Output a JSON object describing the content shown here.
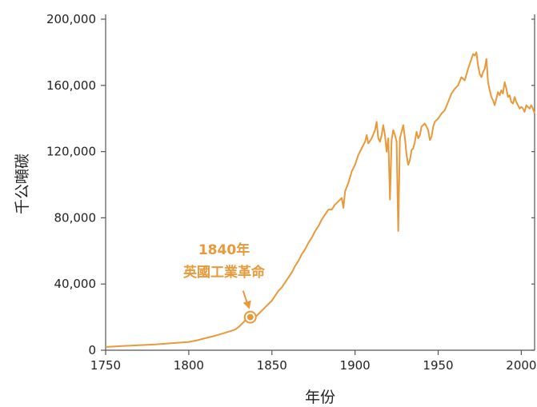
{
  "colors": {
    "line": "#E8993A",
    "axis": "#555555",
    "text": "#222222"
  },
  "chart_data": {
    "type": "line",
    "xlabel": "年份",
    "ylabel": "千公噸碳",
    "xlim": [
      1750,
      2008
    ],
    "ylim": [
      0,
      200000
    ],
    "x_ticks": [
      1750,
      1800,
      1850,
      1900,
      1950,
      2000
    ],
    "y_ticks": [
      0,
      40000,
      80000,
      120000,
      160000,
      200000
    ],
    "x_tick_labels": [
      "1750",
      "1800",
      "1850",
      "1900",
      "1950",
      "2000"
    ],
    "y_tick_labels": [
      "0",
      "40,000",
      "80,000",
      "120,000",
      "160,000",
      "200,000"
    ],
    "grid": false,
    "annotation": {
      "text_line1": "1840年",
      "text_line2": "英國工業革命",
      "point_x": 1837,
      "point_y": 20000
    },
    "series": [
      {
        "x": [
          1750,
          1760,
          1770,
          1780,
          1790,
          1800,
          1805,
          1810,
          1815,
          1820,
          1825,
          1828,
          1830,
          1832,
          1834,
          1836,
          1838,
          1840,
          1842,
          1844,
          1846,
          1848,
          1850,
          1852,
          1854,
          1856,
          1858,
          1860,
          1862,
          1864,
          1866,
          1868,
          1870,
          1872,
          1874,
          1876,
          1878,
          1880,
          1882,
          1884,
          1886,
          1888,
          1890,
          1892,
          1893,
          1894,
          1896,
          1898,
          1900,
          1902,
          1904,
          1906,
          1907,
          1908,
          1910,
          1912,
          1913,
          1914,
          1915,
          1916,
          1917,
          1918,
          1919,
          1920,
          1921,
          1922,
          1923,
          1924,
          1925,
          1926,
          1927,
          1928,
          1929,
          1930,
          1931,
          1932,
          1933,
          1934,
          1935,
          1936,
          1937,
          1938,
          1939,
          1940,
          1942,
          1944,
          1945,
          1946,
          1947,
          1948,
          1950,
          1952,
          1954,
          1956,
          1958,
          1960,
          1962,
          1964,
          1966,
          1968,
          1970,
          1971,
          1972,
          1973,
          1974,
          1975,
          1976,
          1977,
          1978,
          1979,
          1980,
          1981,
          1982,
          1983,
          1984,
          1985,
          1986,
          1987,
          1988,
          1989,
          1990,
          1991,
          1992,
          1993,
          1994,
          1995,
          1996,
          1997,
          1998,
          1999,
          2000,
          2001,
          2002,
          2003,
          2004,
          2005,
          2006,
          2007,
          2008
        ],
        "values": [
          2000,
          2500,
          3000,
          3500,
          4300,
          5000,
          6000,
          7300,
          8500,
          10000,
          11500,
          12500,
          14000,
          16000,
          18000,
          19500,
          20000,
          20000,
          22000,
          24000,
          26000,
          28000,
          30000,
          33000,
          36000,
          38000,
          41000,
          44000,
          47000,
          51000,
          54000,
          58000,
          61000,
          65000,
          68000,
          72000,
          75000,
          79000,
          82000,
          85000,
          85000,
          88000,
          90000,
          92000,
          86000,
          96000,
          101000,
          108000,
          112000,
          118000,
          122000,
          126000,
          130000,
          125000,
          128000,
          133000,
          138000,
          128000,
          126000,
          130000,
          136000,
          130000,
          120000,
          128000,
          91000,
          127000,
          133000,
          130000,
          126000,
          72000,
          128000,
          132000,
          136000,
          128000,
          118000,
          112000,
          115000,
          121000,
          122000,
          126000,
          132000,
          128000,
          130000,
          135000,
          137000,
          133000,
          127000,
          129000,
          135000,
          138000,
          140000,
          143000,
          145000,
          150000,
          155000,
          158000,
          160000,
          165000,
          163000,
          170000,
          176000,
          179000,
          178000,
          180000,
          172000,
          167000,
          165000,
          168000,
          170000,
          176000,
          162000,
          157000,
          153000,
          151000,
          148000,
          152000,
          156000,
          154000,
          157000,
          155000,
          162000,
          158000,
          153000,
          154000,
          150000,
          149000,
          153000,
          150000,
          148000,
          146000,
          147000,
          146000,
          144000,
          148000,
          147000,
          146000,
          148000,
          146000,
          143000
        ]
      }
    ]
  }
}
